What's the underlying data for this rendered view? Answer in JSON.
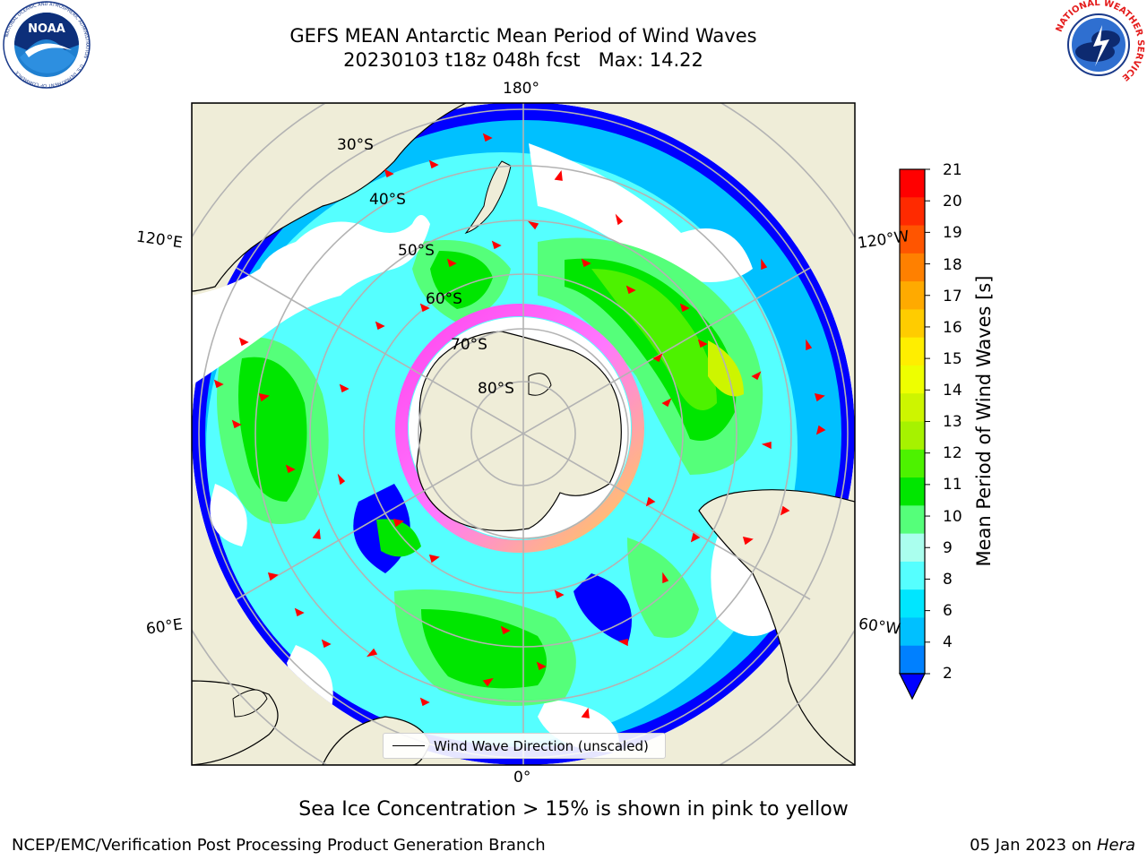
{
  "title": {
    "line1": "GEFS MEAN Antarctic Mean Period of Wind Waves",
    "line2": "20230103 t18z 048h fcst   Max: 14.22"
  },
  "map": {
    "longitude_labels": {
      "top": "180°",
      "upper_left": "120°E",
      "upper_right": "120°W",
      "lower_left": "60°E",
      "lower_right": "60°W",
      "bottom": "0°"
    },
    "latitude_labels": [
      "30°S",
      "40°S",
      "50°S",
      "60°S",
      "70°S",
      "80°S"
    ],
    "legend_label": "Wind Wave Direction (unscaled)",
    "land_color": "#efedd8",
    "arrow_color": "#ff0000"
  },
  "colorbar": {
    "label": "Mean Period of Wind Waves [s]",
    "ticks": [
      "21",
      "20",
      "19",
      "18",
      "17",
      "16",
      "15",
      "14",
      "13",
      "12",
      "11",
      "10",
      "9",
      "8",
      "6",
      "4",
      "2"
    ],
    "colors": [
      "#ff0000",
      "#ff2a00",
      "#ff5500",
      "#ff8000",
      "#ffaa00",
      "#ffcc00",
      "#ffee00",
      "#eeff00",
      "#cdf500",
      "#a6f200",
      "#4df200",
      "#00e600",
      "#55ff7a",
      "#aaffee",
      "#55ffff",
      "#00e6ff",
      "#00c0ff",
      "#0080ff",
      "#0000ff"
    ]
  },
  "note": "Sea Ice Concentration > 15% is shown in pink to yellow",
  "footer": {
    "left": "NCEP/EMC/Verification Post Processing Product Generation Branch",
    "right_date": "05 Jan 2023 on ",
    "right_system": "Hera"
  },
  "logos": {
    "left": "NOAA",
    "left_ring_text": "NATIONAL OCEANIC AND ATMOSPHERIC ADMINISTRATION",
    "left_ring_text_bottom": "U.S. DEPARTMENT OF COMMERCE",
    "right_ring_text": "NATIONAL WEATHER SERVICE"
  }
}
